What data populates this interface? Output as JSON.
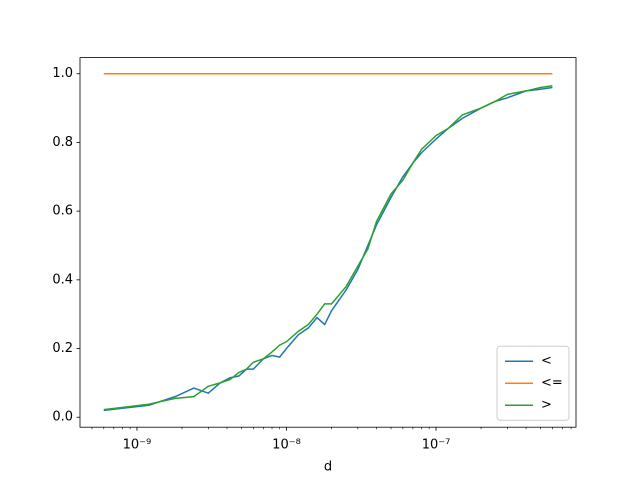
{
  "chart_data": {
    "type": "line",
    "xlabel": "d",
    "xscale": "log",
    "legend": "lower right",
    "xlim": [
      4.16e-10,
      8.63e-07
    ],
    "ylim": [
      -0.029,
      1.047
    ],
    "xticks": [
      {
        "value": 1e-09,
        "label": "10⁻⁹"
      },
      {
        "value": 1e-08,
        "label": "10⁻⁸"
      },
      {
        "value": 1e-07,
        "label": "10⁻⁷"
      }
    ],
    "xminorticks": [
      5e-10,
      6e-10,
      7e-10,
      8e-10,
      9e-10,
      2e-09,
      3e-09,
      4e-09,
      5e-09,
      6e-09,
      7e-09,
      8e-09,
      9e-09,
      2e-08,
      3e-08,
      4e-08,
      5e-08,
      6e-08,
      7e-08,
      8e-08,
      9e-08,
      2e-07,
      3e-07,
      4e-07,
      5e-07,
      6e-07,
      7e-07,
      8e-07
    ],
    "yticks": [
      {
        "value": 0,
        "label": "0.0"
      },
      0.2,
      0.4,
      0.6,
      0.8,
      {
        "value": 1,
        "label": "1.0"
      }
    ],
    "x": [
      6e-10,
      1.2e-09,
      1.8e-09,
      2.4e-09,
      3e-09,
      3.6e-09,
      4.2e-09,
      4.8e-09,
      5.4e-09,
      6e-09,
      7e-09,
      8e-09,
      9e-09,
      1e-08,
      1.2e-08,
      1.4e-08,
      1.6e-08,
      1.8e-08,
      2e-08,
      2.5e-08,
      3e-08,
      3.5e-08,
      4e-08,
      5e-08,
      6e-08,
      7e-08,
      8e-08,
      1e-07,
      1.2e-07,
      1.5e-07,
      2e-07,
      2.5e-07,
      3e-07,
      4e-07,
      5e-07,
      6e-07
    ],
    "series": [
      {
        "name": "<",
        "color": "#1f77b4",
        "values": [
          0.02,
          0.035,
          0.06,
          0.085,
          0.07,
          0.1,
          0.115,
          0.12,
          0.14,
          0.14,
          0.17,
          0.18,
          0.175,
          0.2,
          0.24,
          0.26,
          0.29,
          0.27,
          0.31,
          0.37,
          0.43,
          0.5,
          0.56,
          0.64,
          0.7,
          0.74,
          0.77,
          0.81,
          0.84,
          0.87,
          0.9,
          0.92,
          0.93,
          0.95,
          0.955,
          0.96
        ]
      },
      {
        "name": "<=",
        "color": "#ff7f0e",
        "values": [
          1,
          1,
          1,
          1,
          1,
          1,
          1,
          1,
          1,
          1,
          1,
          1,
          1,
          1,
          1,
          1,
          1,
          1,
          1,
          1,
          1,
          1,
          1,
          1,
          1,
          1,
          1,
          1,
          1,
          1,
          1,
          1,
          1,
          1,
          1,
          1
        ]
      },
      {
        "name": ">",
        "color": "#2ca02c",
        "values": [
          0.022,
          0.038,
          0.055,
          0.06,
          0.09,
          0.1,
          0.11,
          0.13,
          0.14,
          0.16,
          0.17,
          0.19,
          0.21,
          0.22,
          0.25,
          0.27,
          0.3,
          0.33,
          0.33,
          0.38,
          0.44,
          0.49,
          0.57,
          0.65,
          0.69,
          0.74,
          0.78,
          0.82,
          0.84,
          0.88,
          0.9,
          0.92,
          0.94,
          0.95,
          0.96,
          0.965
        ]
      }
    ]
  }
}
